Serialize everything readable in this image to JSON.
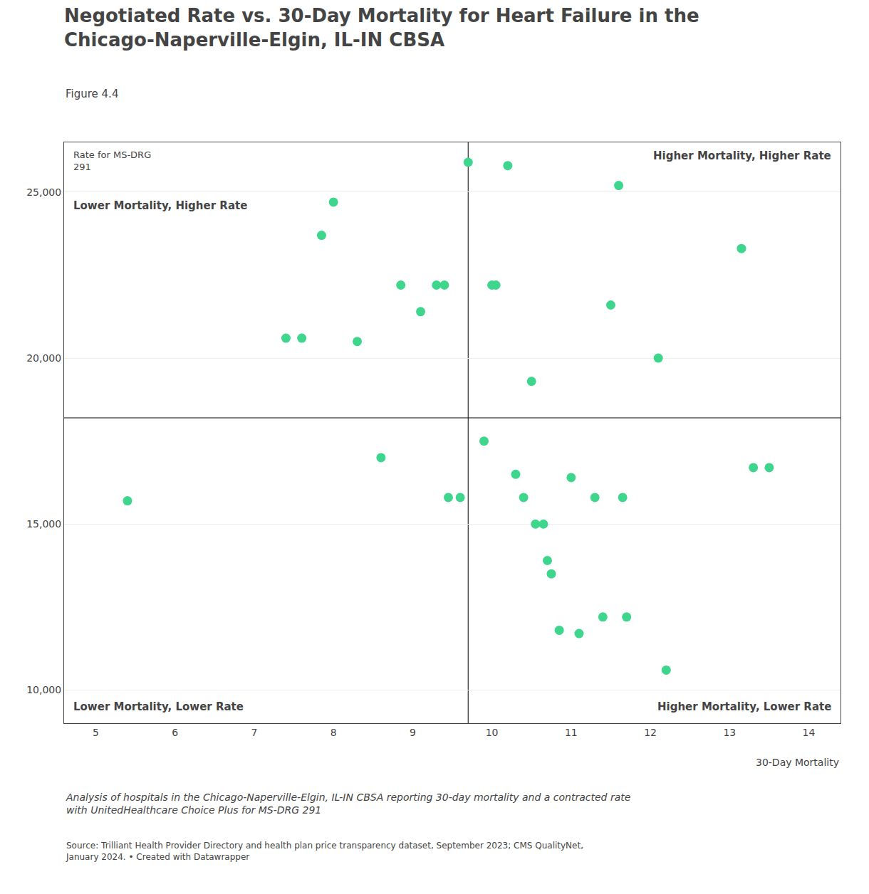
{
  "chart_data": {
    "type": "scatter",
    "title": "Negotiated Rate vs. 30-Day Mortality for Heart Failure in the\nChicago-Naperville-Elgin, IL-IN CBSA",
    "subtitle": "Figure 4.4",
    "y_label": "Rate for MS-DRG\n291",
    "x_label": "30-Day Mortality",
    "quadrant_labels": [
      "Lower Mortality, Higher Rate",
      "Higher Mortality, Higher Rate",
      "Lower Mortality, Lower Rate",
      "Higher Mortality, Lower Rate"
    ],
    "annotations": [
      "Analysis of hospitals in the Chicago-Naperville-Elgin, IL-IN CBSA reporting 30-day mortality and a contracted rate\nwith UnitedHealthcare Choice Plus for MS-DRG 291",
      "Source: Trilliant Health Provider Directory and health plan price transparency dataset, September 2023; CMS QualityNet,\nJanuary 2024. • Created with Datawrapper"
    ],
    "x": [
      5.4,
      7.4,
      7.6,
      7.85,
      8.0,
      8.3,
      8.6,
      8.85,
      9.1,
      9.3,
      9.4,
      9.45,
      9.6,
      9.7,
      9.9,
      10.0,
      10.05,
      10.2,
      10.3,
      10.4,
      10.5,
      10.55,
      10.65,
      10.7,
      10.75,
      10.85,
      11.0,
      11.1,
      11.3,
      11.4,
      11.5,
      11.6,
      11.65,
      11.7,
      12.1,
      12.2,
      13.15,
      13.3,
      13.5
    ],
    "values": [
      15700,
      20600,
      20600,
      23700,
      24700,
      20500,
      17000,
      22200,
      21400,
      22200,
      22200,
      15800,
      15800,
      25900,
      17500,
      22200,
      22200,
      25800,
      16500,
      15800,
      19300,
      15000,
      15000,
      13900,
      13500,
      11800,
      16400,
      11700,
      15800,
      12200,
      21600,
      25200,
      15800,
      12200,
      20000,
      10600,
      23300,
      16700,
      16700
    ],
    "color": "#3dd68c",
    "x_median": 9.7,
    "y_median": 18200,
    "xlim": [
      4.6,
      14.4
    ],
    "ylim": [
      9000,
      26500
    ],
    "xticks": [
      5,
      6,
      7,
      8,
      9,
      10,
      11,
      12,
      13,
      14
    ],
    "yticks": [
      {
        "value": 10000,
        "label": "10,000"
      },
      {
        "value": 15000,
        "label": "15,000"
      },
      {
        "value": 20000,
        "label": "20,000"
      },
      {
        "value": 25000,
        "label": "25,000"
      }
    ],
    "grid": "y"
  }
}
